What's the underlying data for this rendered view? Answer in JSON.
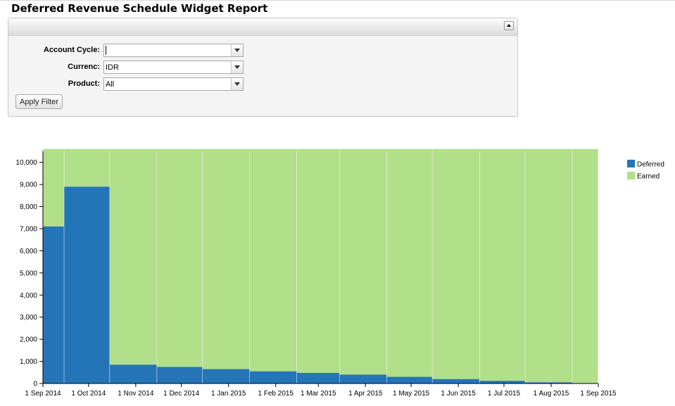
{
  "page": {
    "title": "Deferred Revenue Schedule Widget Report"
  },
  "filters": {
    "account_cycle": {
      "label": "Account Cycle:",
      "value": ""
    },
    "currency": {
      "label": "Currenc:",
      "value": "IDR"
    },
    "product": {
      "label": "Product:",
      "value": "All"
    },
    "apply_label": "Apply Filter"
  },
  "chart_data": {
    "type": "bar",
    "stacked": true,
    "xaxis_type": "time",
    "xlim": [
      "2014-09-01",
      "2015-09-01"
    ],
    "ylim": [
      0,
      10500
    ],
    "yticks": [
      0,
      1000,
      2000,
      3000,
      4000,
      5000,
      6000,
      7000,
      8000,
      9000,
      10000
    ],
    "ytick_labels": [
      "0",
      "1,000",
      "2,000",
      "3,000",
      "4,000",
      "5,000",
      "6,000",
      "7,000",
      "8,000",
      "9,000",
      "10,000"
    ],
    "xticks": [
      "2014-09-01",
      "2014-10-01",
      "2014-11-01",
      "2014-12-01",
      "2015-01-01",
      "2015-02-01",
      "2015-03-01",
      "2015-04-01",
      "2015-05-01",
      "2015-06-01",
      "2015-07-01",
      "2015-08-01",
      "2015-09-01"
    ],
    "xtick_labels": [
      "1 Sep 2014",
      "1 Oct 2014",
      "1 Nov 2014",
      "1 Dec 2014",
      "1 Jan 2015",
      "1 Feb 2015",
      "1 Mar 2015",
      "1 Apr 2015",
      "1 May 2015",
      "1 Jun 2015",
      "1 Jul 2015",
      "1 Aug 2015",
      "1 Sep 2015"
    ],
    "bars": [
      {
        "start": "2014-09-01",
        "end": "2014-09-15",
        "deferred": 7100,
        "earned": 3500
      },
      {
        "start": "2014-09-15",
        "end": "2014-10-15",
        "deferred": 8900,
        "earned": 1700
      },
      {
        "start": "2014-10-15",
        "end": "2014-11-15",
        "deferred": 850,
        "earned": 9750
      },
      {
        "start": "2014-11-15",
        "end": "2014-12-15",
        "deferred": 750,
        "earned": 9850
      },
      {
        "start": "2014-12-15",
        "end": "2015-01-15",
        "deferred": 650,
        "earned": 9950
      },
      {
        "start": "2015-01-15",
        "end": "2015-02-15",
        "deferred": 550,
        "earned": 10050
      },
      {
        "start": "2015-02-15",
        "end": "2015-03-15",
        "deferred": 480,
        "earned": 10120
      },
      {
        "start": "2015-03-15",
        "end": "2015-04-15",
        "deferred": 400,
        "earned": 10200
      },
      {
        "start": "2015-04-15",
        "end": "2015-05-15",
        "deferred": 300,
        "earned": 10300
      },
      {
        "start": "2015-05-15",
        "end": "2015-06-15",
        "deferred": 200,
        "earned": 10400
      },
      {
        "start": "2015-06-15",
        "end": "2015-07-15",
        "deferred": 120,
        "earned": 10480
      },
      {
        "start": "2015-07-15",
        "end": "2015-08-15",
        "deferred": 50,
        "earned": 10550
      },
      {
        "start": "2015-08-15",
        "end": "2015-09-01",
        "deferred": 0,
        "earned": 10600
      }
    ],
    "series": [
      {
        "name": "Deferred",
        "color": "#2474b8"
      },
      {
        "name": "Earned",
        "color": "#b2df8a"
      }
    ],
    "grid": false,
    "legend": "right",
    "title": "",
    "xlabel": "",
    "ylabel": ""
  }
}
